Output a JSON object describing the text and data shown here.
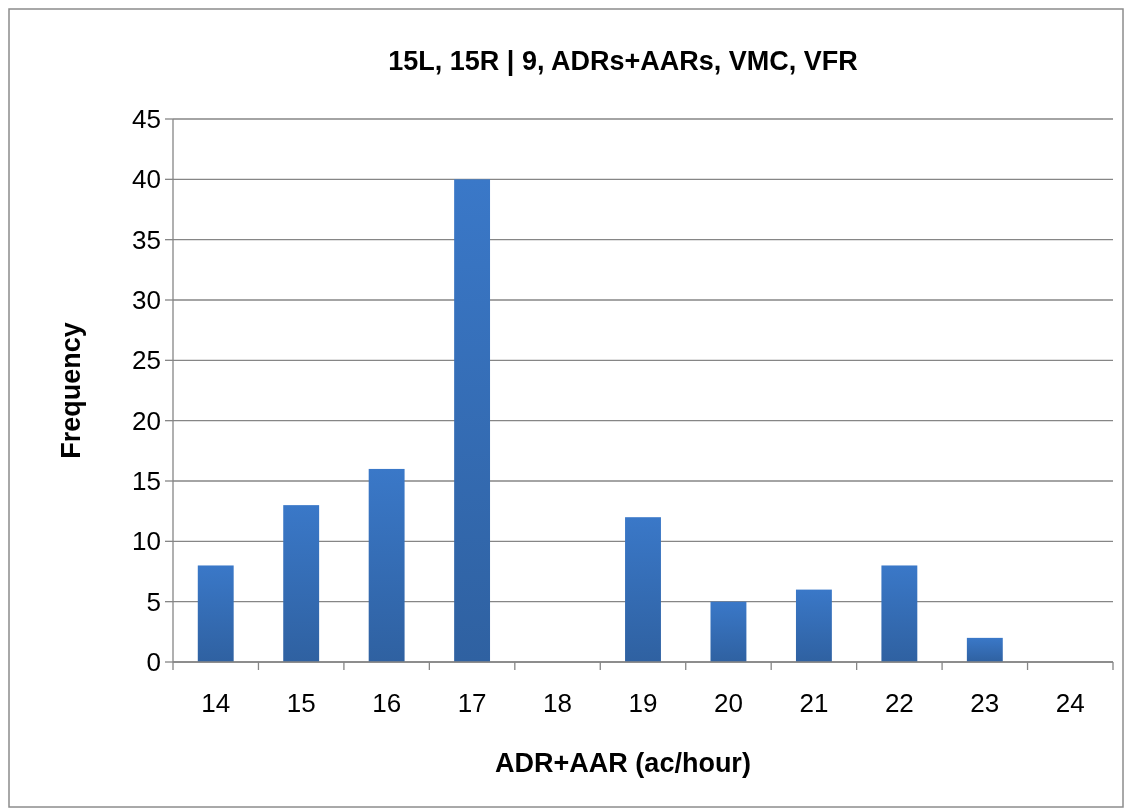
{
  "chart_data": {
    "type": "bar",
    "title": "15L, 15R | 9, ADRs+AARs, VMC, VFR",
    "xlabel": "ADR+AAR (ac/hour)",
    "ylabel": "Frequency",
    "categories": [
      "14",
      "15",
      "16",
      "17",
      "18",
      "19",
      "20",
      "21",
      "22",
      "23",
      "24"
    ],
    "values": [
      8,
      13,
      16,
      40,
      0,
      12,
      5,
      6,
      8,
      2,
      0
    ],
    "color": "#3a78c8",
    "ylim": [
      0,
      45
    ],
    "yticks": [
      0,
      5,
      10,
      15,
      20,
      25,
      30,
      35,
      40,
      45
    ],
    "grid": "y"
  }
}
